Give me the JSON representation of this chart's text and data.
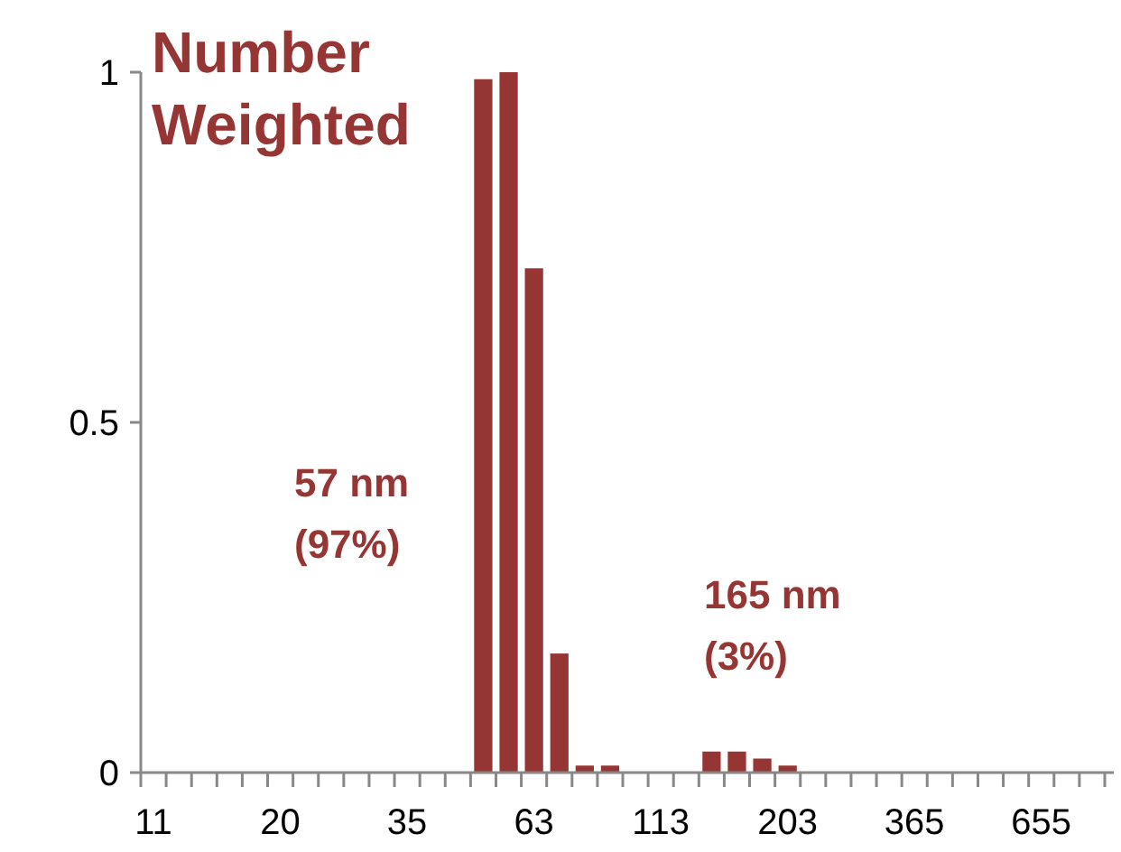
{
  "chart_data": {
    "type": "bar",
    "title": "Number Weighted",
    "categories": [
      "11",
      null,
      null,
      null,
      null,
      "20",
      null,
      null,
      null,
      null,
      "35",
      null,
      null,
      null,
      null,
      "63",
      null,
      null,
      null,
      null,
      "113",
      null,
      null,
      null,
      null,
      "203",
      null,
      null,
      null,
      null,
      "365",
      null,
      null,
      null,
      null,
      "655",
      null,
      null
    ],
    "values": [
      0,
      0,
      0,
      0,
      0,
      0,
      0,
      0,
      0,
      0,
      0,
      0,
      0,
      0.99,
      1.0,
      0.72,
      0.17,
      0.01,
      0.01,
      0,
      0,
      0,
      0.03,
      0.03,
      0.02,
      0.01,
      0,
      0,
      0,
      0,
      0,
      0,
      0,
      0,
      0,
      0,
      0,
      0
    ],
    "color": "#963634",
    "ylim": [
      0,
      1
    ],
    "yticks": [
      0,
      0.5,
      1
    ],
    "grid": false,
    "annotations": [
      "57 nm\n(97%)",
      "165 nm\n(3%)"
    ]
  }
}
